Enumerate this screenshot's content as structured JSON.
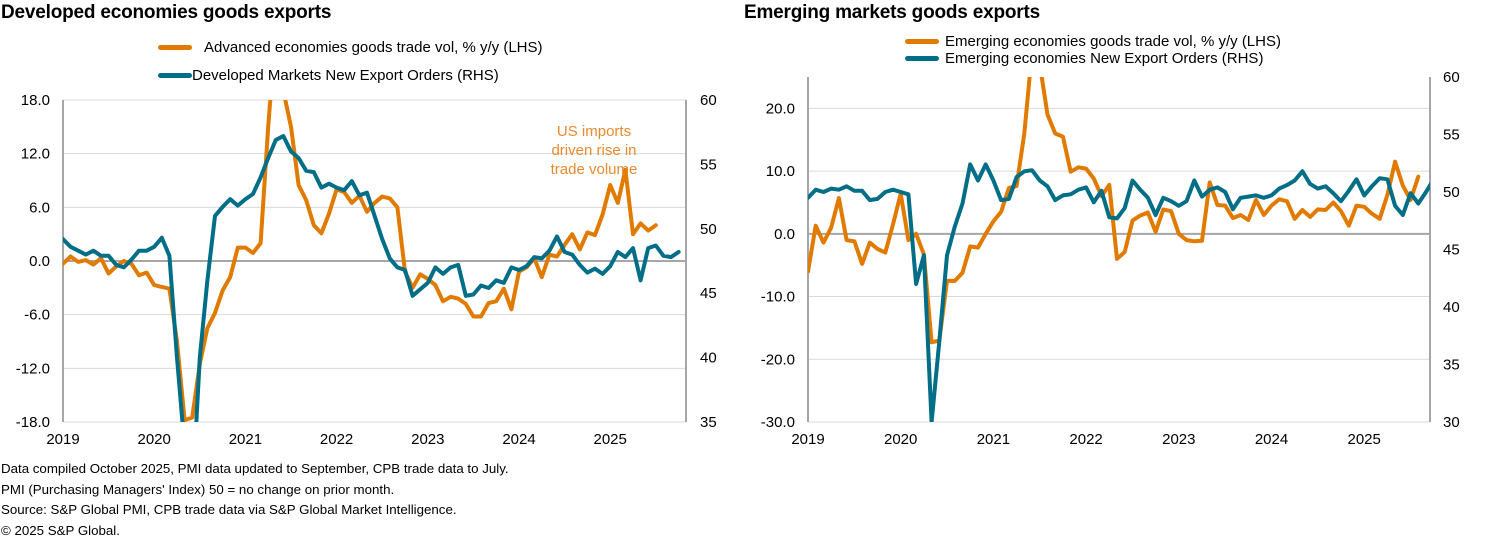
{
  "colors": {
    "orange": "#e07b00",
    "teal": "#006e87",
    "grid": "#d9d9d9",
    "axis": "#a6a6a6",
    "annotation": "#e88a2e"
  },
  "chart_data": [
    {
      "type": "line",
      "title": "Developed economies goods exports",
      "start": "2019-01",
      "frequency": "monthly",
      "x_tick_labels": [
        "2019",
        "2020",
        "2021",
        "2022",
        "2023",
        "2024",
        "2025"
      ],
      "y_left": {
        "ylim": [
          -18,
          18
        ],
        "ticks": [
          "18.0",
          "12.0",
          "6.0",
          "0.0",
          "-6.0",
          "-12.0",
          "-18.0"
        ],
        "tick_values": [
          18,
          12,
          6,
          0,
          -6,
          -12,
          -18
        ]
      },
      "y_right": {
        "ylim": [
          35,
          60
        ],
        "ticks": [
          "60",
          "55",
          "50",
          "45",
          "40",
          "35"
        ],
        "tick_values": [
          60,
          55,
          50,
          45,
          40,
          35
        ]
      },
      "grid": true,
      "legend_position": "top-center",
      "series": [
        {
          "name": "Advanced economies goods trade vol, % y/y (LHS)",
          "axis": "left",
          "color_key": "orange",
          "values": [
            -0.3,
            0.5,
            -0.1,
            0.1,
            -0.4,
            0.3,
            -1.4,
            -0.6,
            0.0,
            -0.3,
            -1.6,
            -1.3,
            -2.7,
            -2.9,
            -3.1,
            -9.0,
            -17.8,
            -17.5,
            -11.5,
            -7.5,
            -5.8,
            -3.3,
            -1.8,
            1.5,
            1.5,
            0.9,
            2.0,
            15.0,
            26.0,
            19.0,
            15.0,
            8.5,
            6.8,
            4.0,
            3.1,
            5.3,
            8.0,
            7.7,
            6.5,
            7.3,
            5.5,
            6.5,
            7.2,
            7.0,
            6.0,
            -1.2,
            -3.0,
            -1.5,
            -2.0,
            -2.7,
            -4.5,
            -4.0,
            -4.2,
            -4.8,
            -6.2,
            -6.2,
            -4.7,
            -4.5,
            -3.1,
            -5.4,
            -1.2,
            -0.7,
            0.3,
            -1.8,
            0.7,
            0.5,
            1.8,
            3.0,
            1.3,
            3.2,
            2.9,
            5.2,
            8.5,
            6.5,
            10.2,
            3.0,
            4.2,
            3.4,
            4.0
          ]
        },
        {
          "name": "Developed Markets New Export Orders (RHS)",
          "axis": "right",
          "color_key": "teal",
          "values": [
            49.2,
            48.6,
            48.3,
            48.0,
            48.3,
            47.9,
            47.9,
            47.2,
            47.0,
            47.6,
            48.3,
            48.3,
            48.6,
            49.3,
            47.9,
            40.0,
            33.0,
            29.0,
            40.0,
            46.0,
            51.0,
            51.7,
            52.3,
            51.8,
            52.3,
            52.7,
            54.0,
            55.5,
            56.9,
            57.2,
            56.0,
            55.5,
            54.5,
            54.4,
            53.2,
            53.5,
            53.2,
            53.0,
            53.7,
            52.6,
            52.8,
            51.0,
            49.2,
            47.7,
            47.0,
            46.8,
            44.8,
            45.3,
            45.8,
            47.0,
            46.5,
            47.0,
            47.2,
            44.8,
            44.9,
            45.6,
            45.4,
            46.0,
            45.8,
            47.0,
            46.8,
            47.1,
            47.8,
            47.7,
            48.3,
            49.4,
            48.2,
            48.0,
            47.2,
            46.6,
            46.9,
            46.5,
            47.1,
            48.2,
            47.8,
            48.5,
            46.0,
            48.5,
            48.7,
            47.9,
            47.8,
            48.2
          ]
        }
      ],
      "annotations": [
        {
          "text": [
            "US imports",
            "driven rise in",
            "trade volume"
          ],
          "color_key": "annotation"
        }
      ]
    },
    {
      "type": "line",
      "title": "Emerging markets goods exports",
      "start": "2019-01",
      "frequency": "monthly",
      "x_tick_labels": [
        "2019",
        "2020",
        "2021",
        "2022",
        "2023",
        "2024",
        "2025"
      ],
      "y_left": {
        "ylim": [
          -30,
          25
        ],
        "ticks": [
          "20.0",
          "10.0",
          "0.0",
          "-10.0",
          "-20.0",
          "-30.0"
        ],
        "tick_values": [
          20,
          10,
          0,
          -10,
          -20,
          -30
        ]
      },
      "y_right": {
        "ylim": [
          30,
          60
        ],
        "ticks": [
          "60",
          "55",
          "50",
          "45",
          "40",
          "35",
          "30"
        ],
        "tick_values": [
          60,
          55,
          50,
          45,
          40,
          35,
          30
        ]
      },
      "grid": true,
      "legend_position": "top-center",
      "series": [
        {
          "name": "Emerging economies goods trade vol, % y/y (LHS)",
          "axis": "left",
          "color_key": "orange",
          "values": [
            -6.0,
            1.3,
            -1.4,
            1.0,
            5.7,
            -1.0,
            -1.2,
            -4.8,
            -1.4,
            -2.4,
            -3.0,
            1.5,
            6.4,
            -1.0,
            0.0,
            -3.3,
            -17.3,
            -17.0,
            -7.5,
            -7.5,
            -6.2,
            -2.0,
            -2.2,
            0.0,
            2.0,
            3.5,
            7.3,
            7.6,
            16.0,
            29.0,
            27.0,
            19.0,
            16.0,
            15.5,
            9.9,
            10.6,
            10.4,
            8.8,
            6.0,
            7.8,
            -4.0,
            -2.9,
            2.1,
            2.9,
            3.4,
            0.3,
            3.9,
            3.6,
            0.0,
            -1.0,
            -1.2,
            -1.1,
            8.2,
            4.6,
            4.5,
            2.5,
            3.0,
            2.2,
            5.4,
            3.0,
            4.5,
            5.5,
            5.2,
            2.4,
            3.8,
            2.7,
            3.9,
            3.8,
            5.0,
            3.6,
            1.3,
            4.5,
            4.3,
            3.2,
            2.4,
            6.2,
            11.5,
            7.7,
            5.4,
            9.1
          ]
        },
        {
          "name": "Emerging economies New Export Orders (RHS)",
          "axis": "right",
          "color_key": "teal",
          "values": [
            49.5,
            50.2,
            50.0,
            50.3,
            50.2,
            50.5,
            50.1,
            50.1,
            49.3,
            49.4,
            50.0,
            50.2,
            50.0,
            49.8,
            42.0,
            44.5,
            30.0,
            37.0,
            44.5,
            47.0,
            49.0,
            52.4,
            51.0,
            52.4,
            51.0,
            49.3,
            49.4,
            51.3,
            51.8,
            51.9,
            51.0,
            50.5,
            49.3,
            49.7,
            49.8,
            50.2,
            50.4,
            49.1,
            50.1,
            47.8,
            47.7,
            48.6,
            51.0,
            50.2,
            49.5,
            48.0,
            49.5,
            49.2,
            48.8,
            49.2,
            51.0,
            49.6,
            50.2,
            50.4,
            50.0,
            48.5,
            49.5,
            49.6,
            49.7,
            49.5,
            49.7,
            50.3,
            50.6,
            51.0,
            51.8,
            50.7,
            50.3,
            50.5,
            49.9,
            49.2,
            50.1,
            51.1,
            49.7,
            50.5,
            51.2,
            51.1,
            48.8,
            48.0,
            49.9,
            49.0,
            50.0,
            51.1
          ]
        }
      ]
    }
  ],
  "charts_text": [
    {
      "title": "Developed economies goods exports",
      "legend": [
        "Advanced economies goods trade vol, % y/y (LHS)",
        "Developed Markets New Export Orders (RHS)"
      ]
    },
    {
      "title": "Emerging markets goods exports",
      "legend": [
        "Emerging economies goods trade vol, % y/y (LHS)",
        "Emerging economies New Export Orders (RHS)"
      ]
    }
  ],
  "footnotes": [
    "Data compiled October 2025, PMI data updated to September, CPB trade data to July.",
    "PMI (Purchasing Managers' Index) 50 = no change on prior month.",
    "Source: S&P Global PMI, CPB trade data via S&P Global Market Intelligence.",
    "© 2025 S&P Global."
  ]
}
